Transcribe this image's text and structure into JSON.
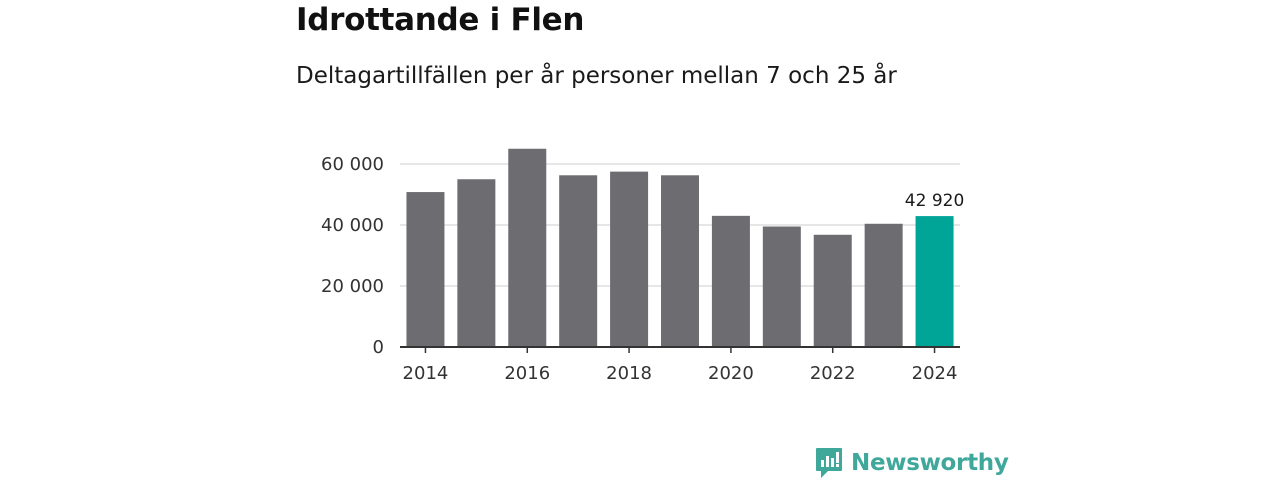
{
  "header": {
    "title": "Idrottande i Flen",
    "subtitle": "Deltagartillfällen per år personer mellan 7 och 25 år"
  },
  "chart_data": {
    "type": "bar",
    "title": "Idrottande i Flen",
    "subtitle": "Deltagartillfällen per år personer mellan 7 och 25 år",
    "xlabel": "",
    "ylabel": "",
    "categories": [
      "2014",
      "2015",
      "2016",
      "2017",
      "2018",
      "2019",
      "2020",
      "2021",
      "2022",
      "2023",
      "2024"
    ],
    "values": [
      50800,
      55000,
      65000,
      56300,
      57500,
      56300,
      43000,
      39500,
      36800,
      40400,
      42920
    ],
    "x_tick_labels": [
      "2014",
      "2016",
      "2018",
      "2020",
      "2022",
      "2024"
    ],
    "y_ticks": [
      0,
      20000,
      40000,
      60000
    ],
    "y_tick_labels": [
      "0",
      "20 000",
      "40 000",
      "60 000"
    ],
    "ylim": [
      0,
      65000
    ],
    "grid": true,
    "highlight_index": 10,
    "highlight_label": "42 920",
    "colors": {
      "bar": "#6d6c71",
      "highlight": "#00a597",
      "grid": "#dddddd",
      "axis": "#333333"
    }
  },
  "brand": {
    "name": "Newsworthy",
    "icon": "newsworthy-logo-icon",
    "color": "#3fa89b"
  }
}
